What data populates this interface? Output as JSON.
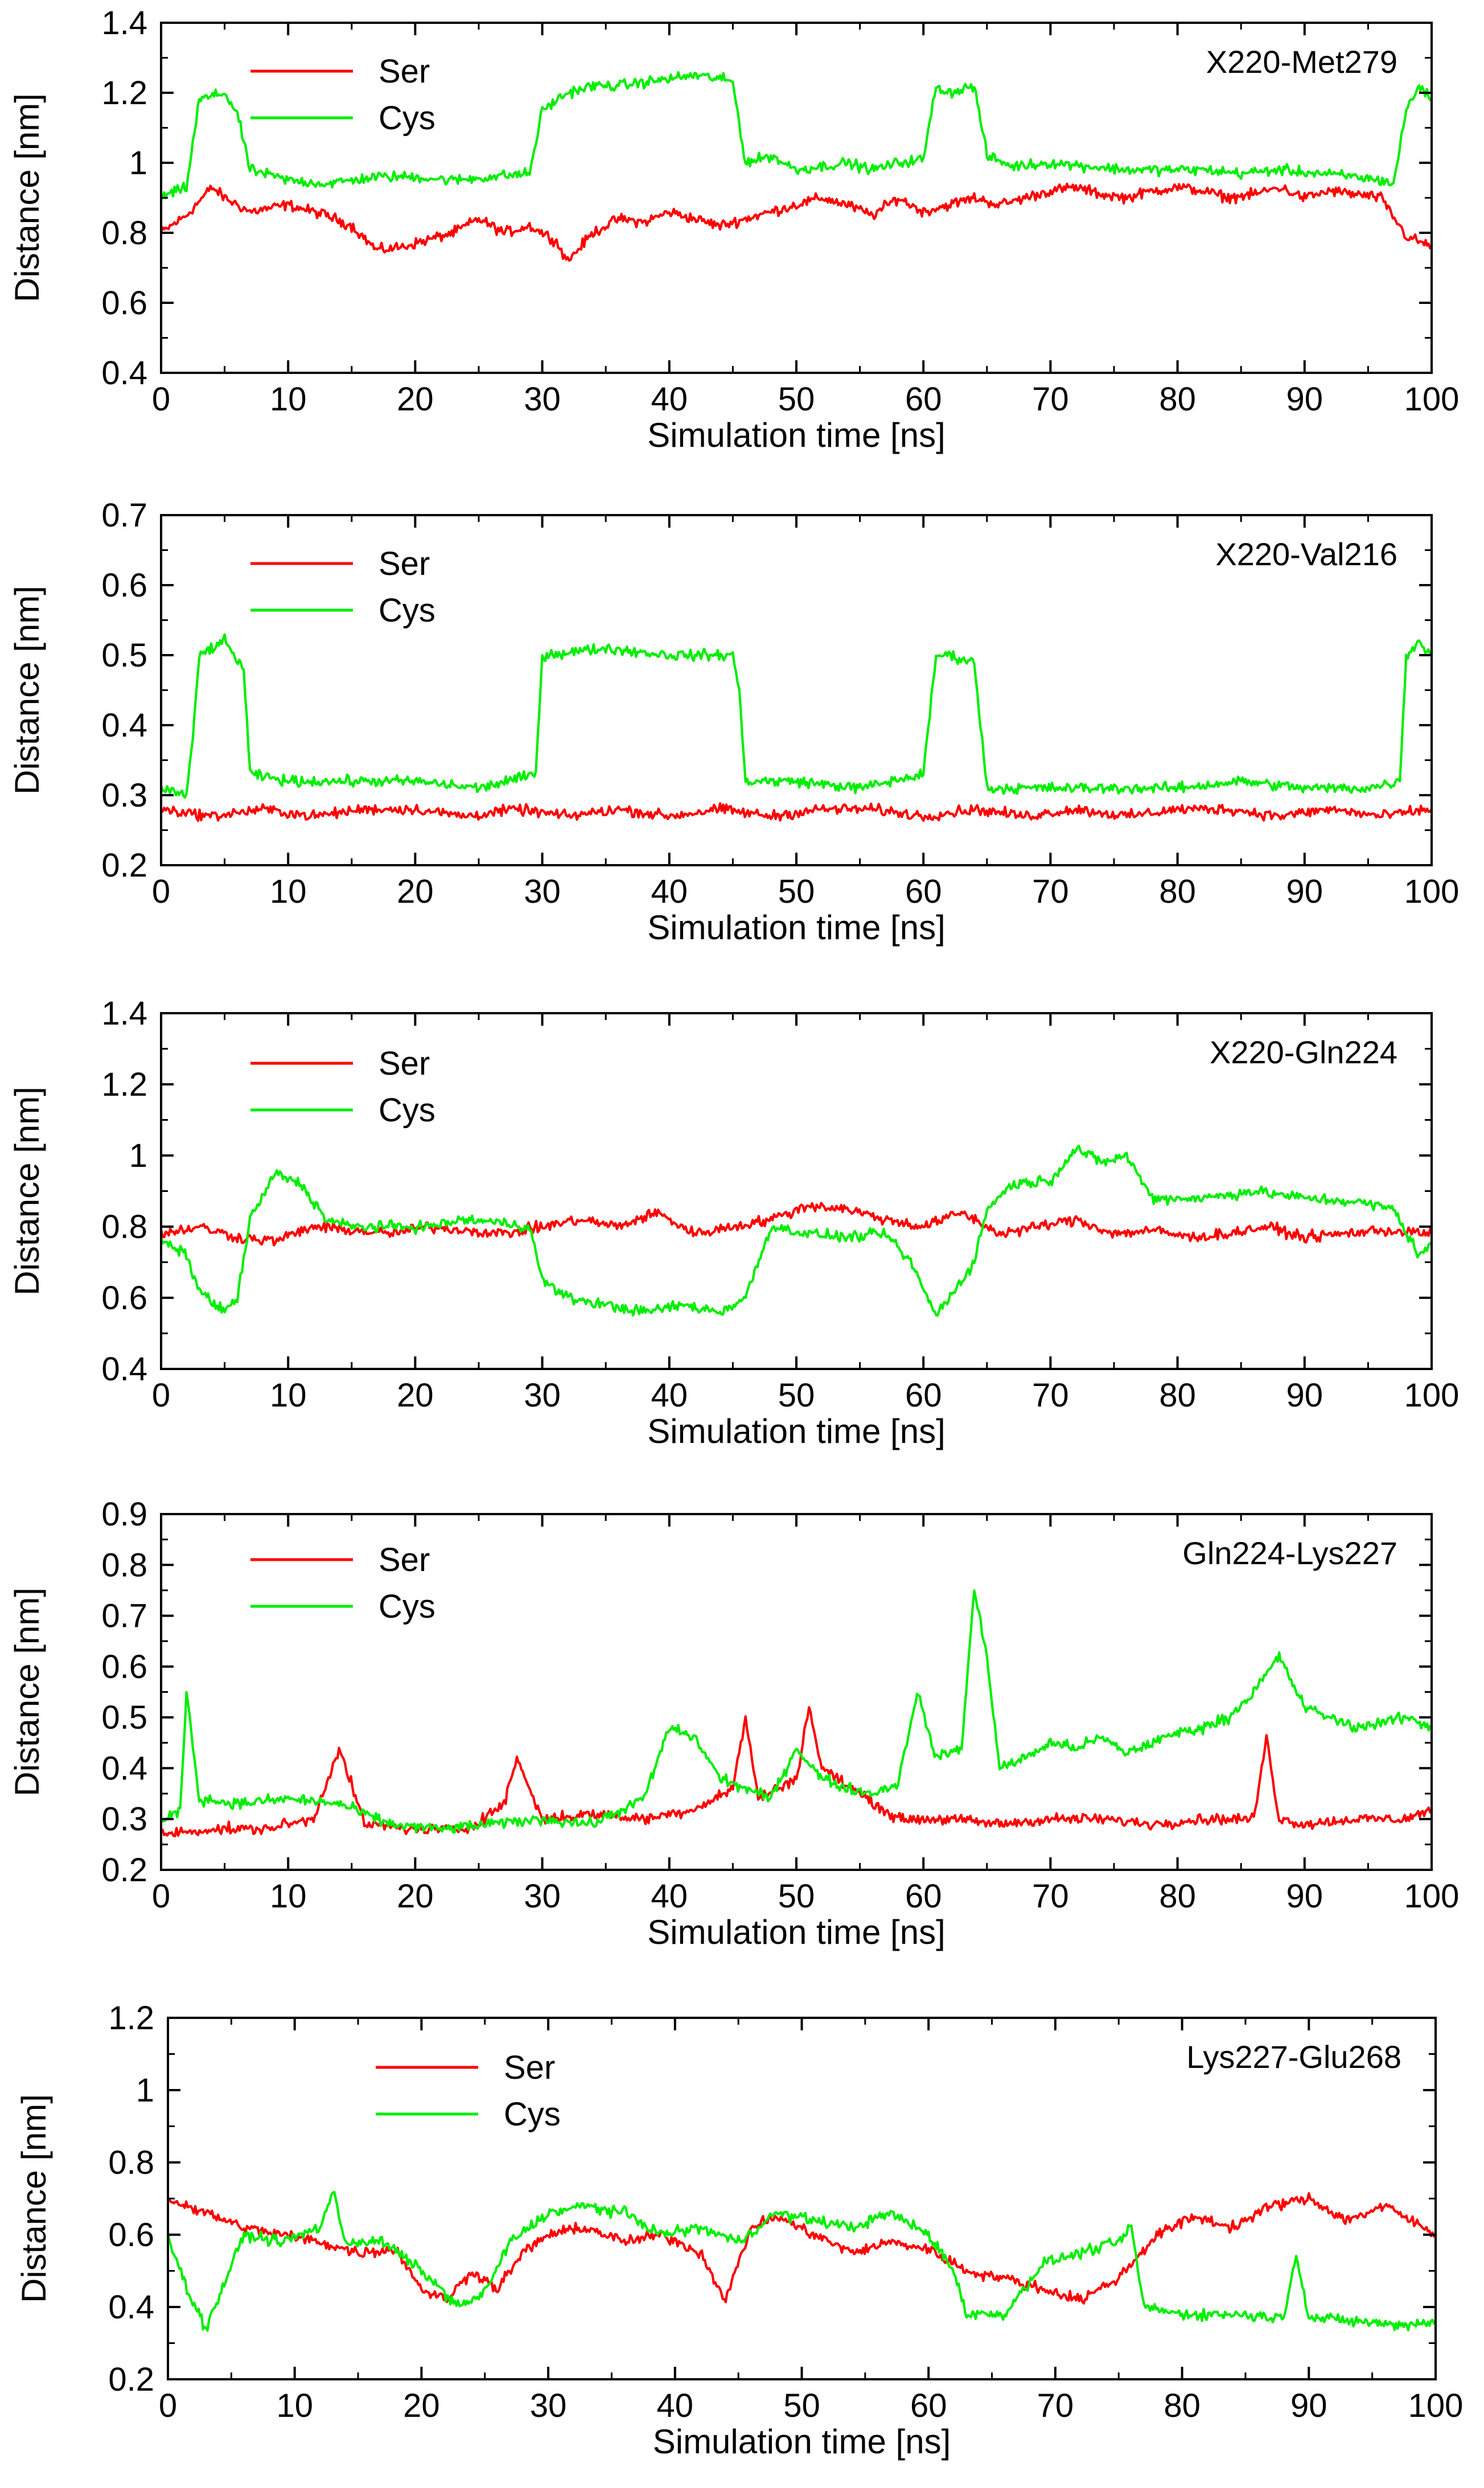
{
  "figure": {
    "panel_count": 5
  },
  "series_style": {
    "Ser": {
      "color": "#ff0000"
    },
    "Cys": {
      "color": "#00ee00"
    }
  },
  "chart_data": [
    {
      "type": "line",
      "panel_label": "X220-Met279",
      "xlabel": "Simulation time [ns]",
      "ylabel": "Distance [nm]",
      "xlim": [
        0,
        100
      ],
      "ylim": [
        0.4,
        1.4
      ],
      "xticks": [
        0,
        10,
        20,
        30,
        40,
        50,
        60,
        70,
        80,
        90,
        100
      ],
      "yticks": [
        0.4,
        0.6,
        0.8,
        1,
        1.2,
        1.4
      ],
      "ytick_labels": [
        "0.4",
        "0.6",
        "0.8",
        "1",
        "1.2",
        "1.4"
      ],
      "legend": [
        "Ser",
        "Cys"
      ],
      "legend_position": "top-left",
      "series": [
        {
          "name": "Ser",
          "x": [
            0,
            2,
            4,
            5,
            7,
            10,
            13,
            15,
            17,
            19,
            21,
            23,
            25,
            27,
            29,
            31,
            32,
            34,
            36,
            38,
            40,
            42,
            44,
            46,
            48,
            50,
            52,
            54,
            56,
            58,
            60,
            62,
            64,
            66,
            68,
            70,
            72,
            74,
            76,
            78,
            80,
            82,
            84,
            86,
            88,
            90,
            92,
            94,
            96,
            98,
            100
          ],
          "y": [
            0.8,
            0.85,
            0.93,
            0.9,
            0.86,
            0.88,
            0.85,
            0.82,
            0.75,
            0.76,
            0.78,
            0.8,
            0.84,
            0.8,
            0.82,
            0.78,
            0.72,
            0.8,
            0.84,
            0.83,
            0.86,
            0.84,
            0.82,
            0.84,
            0.86,
            0.88,
            0.9,
            0.88,
            0.85,
            0.9,
            0.86,
            0.88,
            0.9,
            0.88,
            0.9,
            0.92,
            0.93,
            0.91,
            0.9,
            0.92,
            0.93,
            0.92,
            0.9,
            0.91,
            0.93,
            0.9,
            0.92,
            0.91,
            0.9,
            0.79,
            0.76
          ]
        },
        {
          "name": "Cys",
          "x": [
            0,
            2,
            3,
            5,
            6,
            7,
            10,
            13,
            15,
            17,
            20,
            23,
            26,
            29,
            30,
            32,
            34,
            36,
            38,
            40,
            42,
            44,
            45,
            46,
            48,
            50,
            52,
            54,
            56,
            58,
            60,
            61,
            62,
            64,
            65,
            67,
            70,
            73,
            76,
            79,
            82,
            85,
            88,
            91,
            94,
            96,
            97,
            98,
            99,
            100
          ],
          "y": [
            0.9,
            0.93,
            1.18,
            1.2,
            1.14,
            0.98,
            0.95,
            0.94,
            0.95,
            0.96,
            0.96,
            0.95,
            0.96,
            0.97,
            1.15,
            1.2,
            1.22,
            1.22,
            1.23,
            1.24,
            1.25,
            1.24,
            1.23,
            1.0,
            1.02,
            0.98,
            0.99,
            1.0,
            0.98,
            1.0,
            1.01,
            1.22,
            1.2,
            1.22,
            1.02,
            0.99,
            1.0,
            0.99,
            0.98,
            0.98,
            0.98,
            0.97,
            0.98,
            0.97,
            0.96,
            0.95,
            0.94,
            1.15,
            1.22,
            1.18
          ]
        }
      ]
    },
    {
      "type": "line",
      "panel_label": "X220-Val216",
      "xlabel": "Simulation time [ns]",
      "ylabel": "Distance [nm]",
      "xlim": [
        0,
        100
      ],
      "ylim": [
        0.2,
        0.7
      ],
      "xticks": [
        0,
        10,
        20,
        30,
        40,
        50,
        60,
        70,
        80,
        90,
        100
      ],
      "yticks": [
        0.2,
        0.3,
        0.4,
        0.5,
        0.6,
        0.7
      ],
      "ytick_labels": [
        "0.2",
        "0.3",
        "0.4",
        "0.5",
        "0.6",
        "0.7"
      ],
      "legend": [
        "Ser",
        "Cys"
      ],
      "legend_position": "top-left",
      "series": [
        {
          "name": "Ser",
          "x": [
            0,
            4,
            8,
            12,
            16,
            20,
            24,
            28,
            32,
            36,
            40,
            44,
            48,
            52,
            56,
            60,
            64,
            68,
            72,
            76,
            80,
            84,
            88,
            92,
            96,
            100
          ],
          "y": [
            0.28,
            0.27,
            0.28,
            0.27,
            0.28,
            0.28,
            0.27,
            0.28,
            0.27,
            0.28,
            0.27,
            0.28,
            0.27,
            0.28,
            0.28,
            0.27,
            0.28,
            0.27,
            0.28,
            0.27,
            0.28,
            0.28,
            0.27,
            0.28,
            0.27,
            0.28
          ]
        },
        {
          "name": "Cys",
          "x": [
            0,
            2,
            2.5,
            3,
            5,
            6.5,
            7,
            10,
            15,
            20,
            25,
            29.5,
            30,
            35,
            40,
            45,
            45.5,
            46,
            50,
            55,
            60,
            61,
            62,
            64,
            64.5,
            65,
            70,
            75,
            80,
            85,
            90,
            95,
            97.5,
            98,
            99,
            100
          ],
          "y": [
            0.31,
            0.3,
            0.38,
            0.5,
            0.52,
            0.48,
            0.33,
            0.32,
            0.32,
            0.32,
            0.31,
            0.33,
            0.5,
            0.51,
            0.5,
            0.5,
            0.45,
            0.32,
            0.32,
            0.31,
            0.33,
            0.5,
            0.5,
            0.49,
            0.4,
            0.31,
            0.31,
            0.31,
            0.31,
            0.32,
            0.31,
            0.31,
            0.32,
            0.5,
            0.52,
            0.5
          ]
        }
      ]
    },
    {
      "type": "line",
      "panel_label": "X220-Gln224",
      "xlabel": "Simulation time [ns]",
      "ylabel": "Distance [nm]",
      "xlim": [
        0,
        100
      ],
      "ylim": [
        0.4,
        1.4
      ],
      "xticks": [
        0,
        10,
        20,
        30,
        40,
        50,
        60,
        70,
        80,
        90,
        100
      ],
      "yticks": [
        0.4,
        0.6,
        0.8,
        1,
        1.2,
        1.4
      ],
      "ytick_labels": [
        "0.4",
        "0.6",
        "0.8",
        "1",
        "1.2",
        "1.4"
      ],
      "legend": [
        "Ser",
        "Cys"
      ],
      "legend_position": "top-left",
      "series": [
        {
          "name": "Ser",
          "x": [
            0,
            3,
            6,
            9,
            12,
            15,
            18,
            21,
            24,
            27,
            30,
            33,
            36,
            39,
            42,
            45,
            48,
            51,
            54,
            57,
            60,
            63,
            66,
            69,
            72,
            75,
            78,
            81,
            84,
            87,
            90,
            93,
            96,
            100
          ],
          "y": [
            0.78,
            0.8,
            0.77,
            0.76,
            0.8,
            0.79,
            0.78,
            0.8,
            0.79,
            0.78,
            0.8,
            0.82,
            0.8,
            0.84,
            0.78,
            0.8,
            0.82,
            0.86,
            0.85,
            0.82,
            0.8,
            0.84,
            0.78,
            0.8,
            0.82,
            0.78,
            0.79,
            0.77,
            0.78,
            0.8,
            0.77,
            0.78,
            0.79,
            0.78
          ]
        },
        {
          "name": "Cys",
          "x": [
            0,
            2,
            3,
            5,
            6,
            7,
            9,
            11,
            13,
            15,
            18,
            21,
            24,
            27,
            29,
            30,
            32,
            35,
            38,
            41,
            44,
            46,
            48,
            51,
            54,
            57,
            59,
            61,
            62,
            64,
            65,
            67,
            70,
            72,
            74,
            76,
            78,
            82,
            86,
            90,
            94,
            97,
            99,
            100
          ],
          "y": [
            0.76,
            0.72,
            0.62,
            0.56,
            0.6,
            0.82,
            0.95,
            0.92,
            0.82,
            0.8,
            0.8,
            0.8,
            0.82,
            0.81,
            0.8,
            0.65,
            0.6,
            0.58,
            0.56,
            0.58,
            0.56,
            0.6,
            0.8,
            0.78,
            0.77,
            0.78,
            0.7,
            0.55,
            0.6,
            0.7,
            0.85,
            0.92,
            0.93,
            1.02,
            0.98,
            1.0,
            0.88,
            0.88,
            0.9,
            0.88,
            0.87,
            0.85,
            0.72,
            0.75
          ]
        }
      ]
    },
    {
      "type": "line",
      "panel_label": "Gln224-Lys227",
      "xlabel": "Simulation time [ns]",
      "ylabel": "Distance [nm]",
      "xlim": [
        0,
        100
      ],
      "ylim": [
        0.2,
        0.9
      ],
      "xticks": [
        0,
        10,
        20,
        30,
        40,
        50,
        60,
        70,
        80,
        90,
        100
      ],
      "yticks": [
        0.2,
        0.3,
        0.4,
        0.5,
        0.6,
        0.7,
        0.8,
        0.9
      ],
      "ytick_labels": [
        "0.2",
        "0.3",
        "0.4",
        "0.5",
        "0.6",
        "0.7",
        "0.8",
        "0.9"
      ],
      "legend": [
        "Ser",
        "Cys"
      ],
      "legend_position": "top-left",
      "series": [
        {
          "name": "Ser",
          "x": [
            0,
            4,
            8,
            12,
            14,
            16,
            20,
            24,
            27,
            28,
            30,
            34,
            38,
            42,
            45,
            46,
            47,
            50,
            51,
            52,
            55,
            58,
            62,
            66,
            70,
            74,
            78,
            82,
            86,
            87,
            88,
            90,
            94,
            98,
            100
          ],
          "y": [
            0.27,
            0.28,
            0.28,
            0.3,
            0.44,
            0.29,
            0.28,
            0.28,
            0.33,
            0.42,
            0.3,
            0.31,
            0.3,
            0.32,
            0.36,
            0.5,
            0.34,
            0.38,
            0.52,
            0.4,
            0.35,
            0.3,
            0.3,
            0.29,
            0.3,
            0.3,
            0.29,
            0.3,
            0.3,
            0.46,
            0.3,
            0.29,
            0.3,
            0.3,
            0.32
          ]
        },
        {
          "name": "Cys",
          "x": [
            0,
            1.5,
            2,
            3,
            6,
            10,
            14,
            18,
            22,
            26,
            30,
            34,
            38,
            40,
            42,
            44,
            46,
            48,
            50,
            52,
            54,
            56,
            58,
            59.5,
            61,
            63,
            64,
            65,
            66,
            68,
            70,
            72,
            74,
            76,
            78,
            80,
            82,
            84,
            86,
            88,
            90,
            92,
            94,
            96,
            98,
            100
          ],
          "y": [
            0.29,
            0.32,
            0.55,
            0.34,
            0.33,
            0.34,
            0.33,
            0.29,
            0.28,
            0.29,
            0.3,
            0.29,
            0.34,
            0.48,
            0.46,
            0.38,
            0.36,
            0.34,
            0.44,
            0.38,
            0.36,
            0.35,
            0.37,
            0.55,
            0.42,
            0.44,
            0.75,
            0.62,
            0.4,
            0.42,
            0.45,
            0.44,
            0.46,
            0.43,
            0.45,
            0.47,
            0.48,
            0.5,
            0.55,
            0.62,
            0.52,
            0.5,
            0.48,
            0.49,
            0.5,
            0.48
          ]
        }
      ]
    },
    {
      "type": "line",
      "panel_label": "Lys227-Glu268",
      "xlabel": "Simulation time [ns]",
      "ylabel": "Distance [nm]",
      "xlim": [
        0,
        100
      ],
      "ylim": [
        0.2,
        1.2
      ],
      "xticks": [
        0,
        10,
        20,
        30,
        40,
        50,
        60,
        70,
        80,
        90,
        100
      ],
      "yticks": [
        0.2,
        0.4,
        0.6,
        0.8,
        1,
        1.2
      ],
      "ytick_labels": [
        "0.2",
        "0.4",
        "0.6",
        "0.8",
        "1",
        "1.2"
      ],
      "legend": [
        "Ser",
        "Cys"
      ],
      "legend_position": "top-center",
      "series": [
        {
          "name": "Ser",
          "x": [
            0,
            3,
            6,
            9,
            12,
            15,
            18,
            20,
            22,
            24,
            26,
            28,
            30,
            33,
            36,
            39,
            42,
            44,
            46,
            48,
            51,
            54,
            57,
            60,
            63,
            66,
            69,
            72,
            75,
            78,
            81,
            84,
            87,
            90,
            93,
            96,
            100
          ],
          "y": [
            0.7,
            0.66,
            0.62,
            0.6,
            0.58,
            0.55,
            0.56,
            0.45,
            0.42,
            0.5,
            0.45,
            0.55,
            0.6,
            0.62,
            0.58,
            0.6,
            0.55,
            0.42,
            0.62,
            0.65,
            0.6,
            0.55,
            0.58,
            0.56,
            0.5,
            0.48,
            0.45,
            0.42,
            0.48,
            0.6,
            0.65,
            0.62,
            0.68,
            0.7,
            0.64,
            0.68,
            0.6
          ]
        },
        {
          "name": "Cys",
          "x": [
            0,
            1.5,
            3,
            6,
            9,
            12,
            13,
            14,
            17,
            20,
            23,
            25,
            27,
            30,
            33,
            36,
            39,
            42,
            45,
            48,
            51,
            54,
            57,
            60,
            62,
            63,
            66,
            69,
            72,
            75,
            76,
            77,
            80,
            84,
            88,
            89,
            90,
            94,
            97,
            100
          ],
          "y": [
            0.6,
            0.45,
            0.34,
            0.6,
            0.58,
            0.62,
            0.72,
            0.58,
            0.58,
            0.5,
            0.4,
            0.44,
            0.58,
            0.66,
            0.68,
            0.66,
            0.6,
            0.62,
            0.58,
            0.66,
            0.64,
            0.62,
            0.66,
            0.6,
            0.5,
            0.38,
            0.38,
            0.52,
            0.55,
            0.58,
            0.62,
            0.4,
            0.38,
            0.38,
            0.37,
            0.55,
            0.37,
            0.36,
            0.35,
            0.36
          ]
        }
      ]
    }
  ]
}
